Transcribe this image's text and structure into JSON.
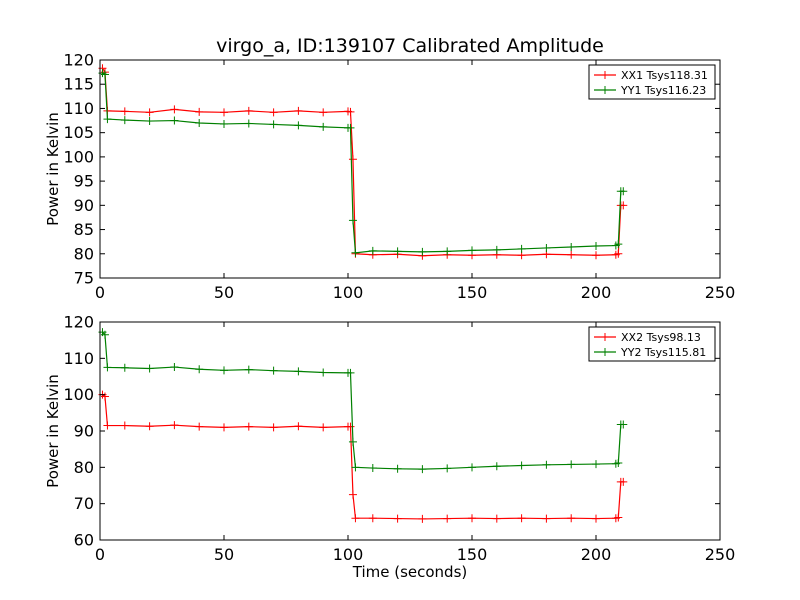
{
  "chart_data": [
    {
      "type": "line",
      "title": "virgo_a, ID:139107 Calibrated Amplitude",
      "xlabel": "",
      "ylabel": "Power in Kelvin",
      "xlim": [
        0,
        250
      ],
      "ylim": [
        75,
        120
      ],
      "xticks": [
        0,
        50,
        100,
        150,
        200,
        250
      ],
      "yticks": [
        75,
        80,
        85,
        90,
        95,
        100,
        105,
        110,
        115,
        120
      ],
      "legend_position": "top-right",
      "grid": false,
      "series": [
        {
          "name": "XX1 Tsys118.31",
          "color": "#ff0000",
          "points": [
            [
              1,
              118.3
            ],
            [
              2,
              117.5
            ],
            [
              3,
              109.5
            ],
            [
              10,
              109.4
            ],
            [
              20,
              109.2
            ],
            [
              30,
              109.8
            ],
            [
              40,
              109.3
            ],
            [
              50,
              109.2
            ],
            [
              60,
              109.5
            ],
            [
              70,
              109.2
            ],
            [
              80,
              109.5
            ],
            [
              90,
              109.2
            ],
            [
              100,
              109.4
            ],
            [
              101,
              109.3
            ],
            [
              102,
              99.5
            ],
            [
              103,
              80.0
            ],
            [
              110,
              79.8
            ],
            [
              120,
              79.9
            ],
            [
              130,
              79.6
            ],
            [
              140,
              79.8
            ],
            [
              150,
              79.7
            ],
            [
              160,
              79.8
            ],
            [
              170,
              79.7
            ],
            [
              180,
              79.9
            ],
            [
              190,
              79.8
            ],
            [
              200,
              79.7
            ],
            [
              208,
              79.8
            ],
            [
              209,
              80.0
            ],
            [
              210,
              90.0
            ],
            [
              211,
              90.0
            ]
          ]
        },
        {
          "name": "YY1 Tsys116.23",
          "color": "#008000",
          "points": [
            [
              1,
              117.3
            ],
            [
              2,
              117.0
            ],
            [
              3,
              107.8
            ],
            [
              10,
              107.6
            ],
            [
              20,
              107.4
            ],
            [
              30,
              107.5
            ],
            [
              40,
              107.0
            ],
            [
              50,
              106.8
            ],
            [
              60,
              106.9
            ],
            [
              70,
              106.7
            ],
            [
              80,
              106.5
            ],
            [
              90,
              106.2
            ],
            [
              100,
              106.0
            ],
            [
              101,
              106.0
            ],
            [
              102,
              86.9
            ],
            [
              103,
              80.2
            ],
            [
              110,
              80.6
            ],
            [
              120,
              80.5
            ],
            [
              130,
              80.4
            ],
            [
              140,
              80.5
            ],
            [
              150,
              80.7
            ],
            [
              160,
              80.8
            ],
            [
              170,
              81.0
            ],
            [
              180,
              81.2
            ],
            [
              190,
              81.4
            ],
            [
              200,
              81.6
            ],
            [
              208,
              81.7
            ],
            [
              209,
              82.0
            ],
            [
              210,
              92.9
            ],
            [
              211,
              92.9
            ]
          ]
        }
      ]
    },
    {
      "type": "line",
      "title": "",
      "xlabel": "Time (seconds)",
      "ylabel": "Power in Kelvin",
      "xlim": [
        0,
        250
      ],
      "ylim": [
        60,
        120
      ],
      "xticks": [
        0,
        50,
        100,
        150,
        200,
        250
      ],
      "yticks": [
        60,
        70,
        80,
        90,
        100,
        110,
        120
      ],
      "legend_position": "top-right",
      "grid": false,
      "series": [
        {
          "name": "XX2 Tsys98.13",
          "color": "#ff0000",
          "points": [
            [
              1,
              100.0
            ],
            [
              2,
              99.5
            ],
            [
              3,
              91.5
            ],
            [
              10,
              91.5
            ],
            [
              20,
              91.3
            ],
            [
              30,
              91.6
            ],
            [
              40,
              91.2
            ],
            [
              50,
              91.0
            ],
            [
              60,
              91.2
            ],
            [
              70,
              91.0
            ],
            [
              80,
              91.3
            ],
            [
              90,
              91.0
            ],
            [
              100,
              91.2
            ],
            [
              101,
              91.2
            ],
            [
              102,
              72.5
            ],
            [
              103,
              66.0
            ],
            [
              110,
              66.0
            ],
            [
              120,
              65.9
            ],
            [
              130,
              65.8
            ],
            [
              140,
              65.9
            ],
            [
              150,
              66.0
            ],
            [
              160,
              65.9
            ],
            [
              170,
              66.0
            ],
            [
              180,
              65.9
            ],
            [
              190,
              66.0
            ],
            [
              200,
              65.9
            ],
            [
              208,
              66.0
            ],
            [
              209,
              66.2
            ],
            [
              210,
              76.0
            ],
            [
              211,
              76.0
            ]
          ]
        },
        {
          "name": "YY2 Tsys115.81",
          "color": "#008000",
          "points": [
            [
              1,
              117.2
            ],
            [
              2,
              116.5
            ],
            [
              3,
              107.5
            ],
            [
              10,
              107.4
            ],
            [
              20,
              107.2
            ],
            [
              30,
              107.6
            ],
            [
              40,
              107.0
            ],
            [
              50,
              106.7
            ],
            [
              60,
              106.9
            ],
            [
              70,
              106.6
            ],
            [
              80,
              106.4
            ],
            [
              90,
              106.1
            ],
            [
              100,
              106.0
            ],
            [
              101,
              106.0
            ],
            [
              102,
              87.0
            ],
            [
              103,
              80.0
            ],
            [
              110,
              79.8
            ],
            [
              120,
              79.6
            ],
            [
              130,
              79.5
            ],
            [
              140,
              79.7
            ],
            [
              150,
              80.0
            ],
            [
              160,
              80.3
            ],
            [
              170,
              80.5
            ],
            [
              180,
              80.7
            ],
            [
              190,
              80.8
            ],
            [
              200,
              80.9
            ],
            [
              208,
              81.0
            ],
            [
              209,
              81.2
            ],
            [
              210,
              91.8
            ],
            [
              211,
              91.8
            ]
          ]
        }
      ]
    }
  ]
}
